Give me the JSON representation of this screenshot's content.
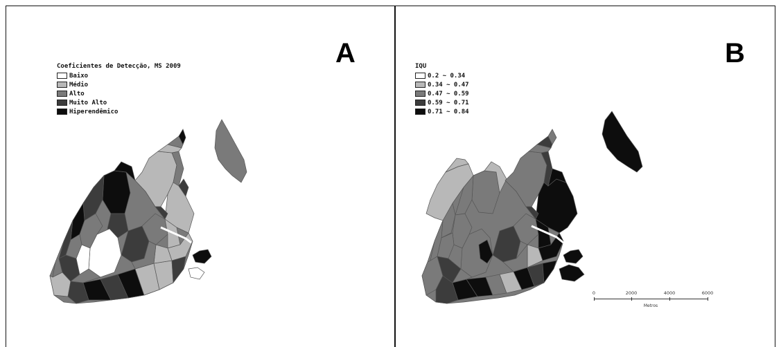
{
  "panels": [
    {
      "letter": "A",
      "legend": {
        "title": "Coeficientes de Detecção, MS 2009",
        "items": [
          {
            "label": "Baixo",
            "color": "#ffffff"
          },
          {
            "label": "Médio",
            "color": "#b8b8b8"
          },
          {
            "label": "Alto",
            "color": "#7a7a7a"
          },
          {
            "label": "Muito Alto",
            "color": "#3c3c3c"
          },
          {
            "label": "Hiperendêmico",
            "color": "#0d0d0d"
          }
        ]
      }
    },
    {
      "letter": "B",
      "legend": {
        "title": "IQU",
        "items": [
          {
            "label": "0.2 ~ 0.34",
            "color": "#ffffff"
          },
          {
            "label": "0.34 ~ 0.47",
            "color": "#b8b8b8"
          },
          {
            "label": "0.47 ~ 0.59",
            "color": "#7a7a7a"
          },
          {
            "label": "0.59 ~ 0.71",
            "color": "#3c3c3c"
          },
          {
            "label": "0.71 ~ 0.84",
            "color": "#0d0d0d"
          }
        ]
      },
      "scalebar": {
        "ticks": [
          "0",
          "2000",
          "4000",
          "6000"
        ],
        "unit": "Metros"
      }
    }
  ]
}
